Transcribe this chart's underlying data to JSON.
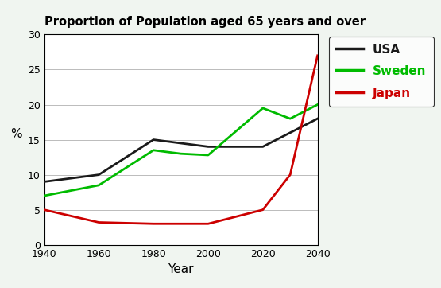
{
  "title": "Proportion of Population aged 65 years and over",
  "xlabel": "Year",
  "ylabel": "%",
  "years": [
    1940,
    1960,
    1980,
    1990,
    2000,
    2020,
    2030,
    2040
  ],
  "usa": [
    9,
    10,
    15,
    14.5,
    14,
    14,
    16,
    18
  ],
  "sweden": [
    7,
    8.5,
    13.5,
    13,
    12.8,
    19.5,
    18,
    20
  ],
  "japan": [
    5,
    3.2,
    3,
    3,
    3,
    5,
    10,
    27
  ],
  "usa_color": "#1a1a1a",
  "sweden_color": "#00bb00",
  "japan_color": "#cc0000",
  "ylim": [
    0,
    30
  ],
  "xlim": [
    1940,
    2040
  ],
  "xticks": [
    1940,
    1960,
    1980,
    2000,
    2020,
    2040
  ],
  "yticks": [
    0,
    5,
    10,
    15,
    20,
    25,
    30
  ],
  "fig_bg": "#f0f5f0",
  "plot_bg": "#ffffff",
  "linewidth": 2.0,
  "legend_labels": [
    "USA",
    "Sweden",
    "Japan"
  ],
  "legend_colors": [
    "#1a1a1a",
    "#00bb00",
    "#cc0000"
  ]
}
